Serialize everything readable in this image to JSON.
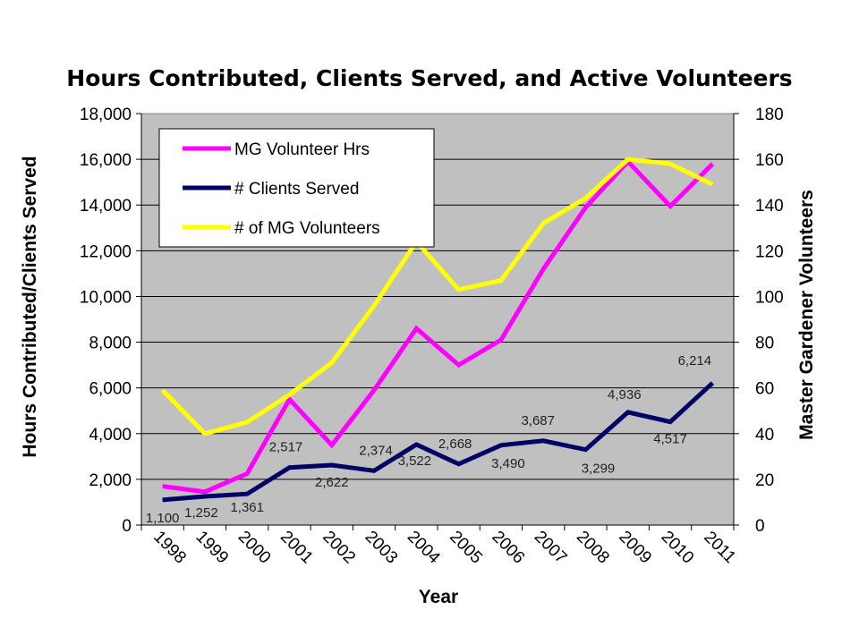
{
  "chart_data": {
    "type": "line",
    "title": "Hours Contributed, Clients Served, and Active Volunteers",
    "xlabel": "Year",
    "ylabel_left": "Hours Contributed/Clients Served",
    "ylabel_right": "Master Gardener Volunteers",
    "categories": [
      "1998",
      "1999",
      "2000",
      "2001",
      "2002",
      "2003",
      "2004",
      "2005",
      "2006",
      "2007",
      "2008",
      "2009",
      "2010",
      "2011"
    ],
    "ylim_left": [
      0,
      18000
    ],
    "ylim_right": [
      0,
      180
    ],
    "yticks_left": [
      "0",
      "2,000",
      "4,000",
      "6,000",
      "8,000",
      "10,000",
      "12,000",
      "14,000",
      "16,000",
      "18,000"
    ],
    "yticks_right": [
      "0",
      "20",
      "40",
      "60",
      "80",
      "100",
      "120",
      "140",
      "160",
      "180"
    ],
    "grid": true,
    "plot_background": "#c0c0c0",
    "legend_position": "top-left",
    "series": [
      {
        "name": "MG Volunteer Hrs",
        "axis": "left",
        "color": "#ff00ff",
        "values": [
          1700,
          1450,
          2250,
          5500,
          3500,
          5900,
          8600,
          7000,
          8100,
          11200,
          13900,
          15900,
          13950,
          15800
        ]
      },
      {
        "name": "# Clients Served",
        "axis": "left",
        "color": "#000066",
        "values": [
          1100,
          1252,
          1361,
          2517,
          2622,
          2374,
          3522,
          2668,
          3490,
          3687,
          3299,
          4936,
          4517,
          6214
        ],
        "labels": [
          "1,100",
          "1,252",
          "1,361",
          "2,517",
          "2,622",
          "2,374",
          "3,522",
          "2,668",
          "3,490",
          "3,687",
          "3,299",
          "4,936",
          "4,517",
          "6,214"
        ]
      },
      {
        "name": "# of MG Volunteers",
        "axis": "right",
        "color": "#ffff00",
        "values": [
          59,
          40,
          45,
          57,
          71,
          96,
          124,
          103,
          107,
          132,
          143,
          160,
          158,
          149
        ]
      }
    ]
  }
}
